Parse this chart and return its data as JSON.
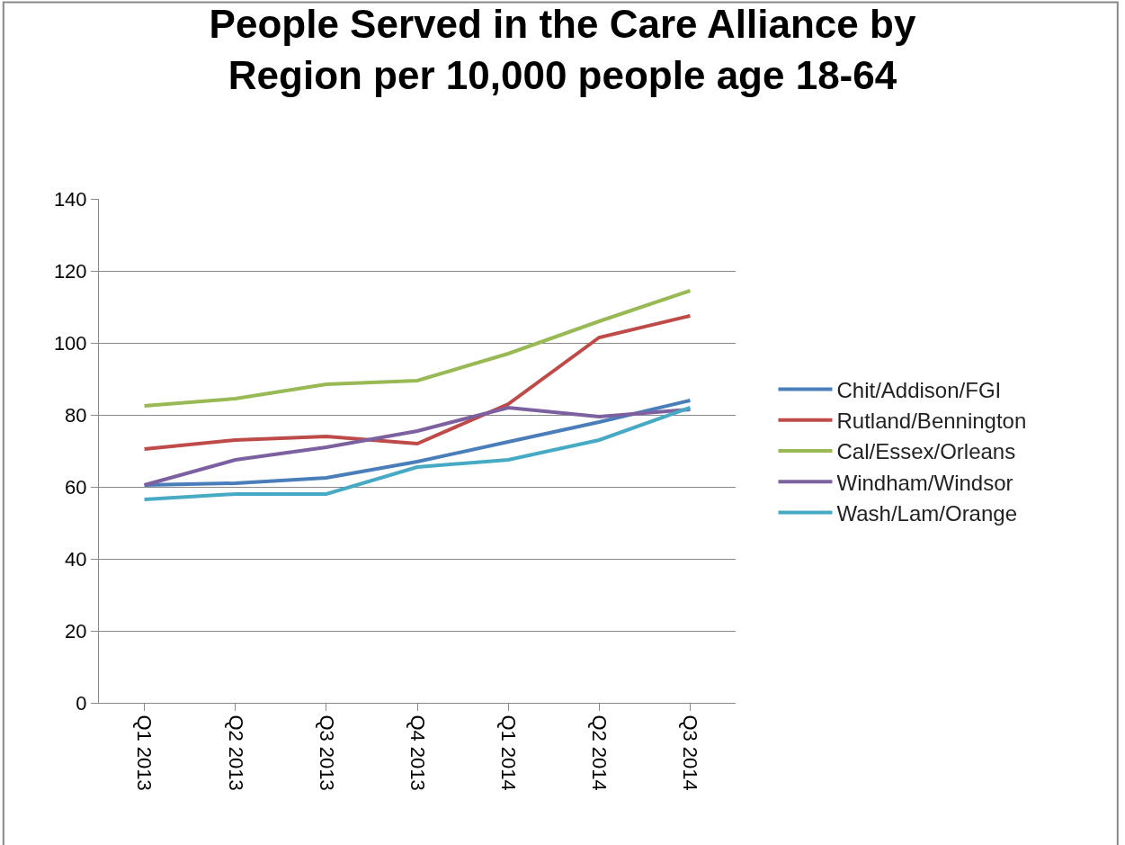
{
  "chart_data": {
    "type": "line",
    "title": "People Served in the Care Alliance by Region per 10,000 people age 18-64",
    "categories": [
      "Q1 2013",
      "Q2 2013",
      "Q3 2013",
      "Q4 2013",
      "Q1 2014",
      "Q2 2014",
      "Q3 2014"
    ],
    "series": [
      {
        "name": "Chit/Addison/FGI",
        "color": "#4a7ebb",
        "values": [
          60.5,
          61,
          62.5,
          67,
          72.5,
          78,
          84
        ]
      },
      {
        "name": "Rutland/Bennington",
        "color": "#be4b48",
        "values": [
          70.5,
          73,
          74,
          72,
          83,
          101.5,
          107.5
        ]
      },
      {
        "name": "Cal/Essex/Orleans",
        "color": "#98b954",
        "values": [
          82.5,
          84.5,
          88.5,
          89.5,
          97,
          106,
          114.5
        ]
      },
      {
        "name": "Windham/Windsor",
        "color": "#7d60a0",
        "values": [
          60.5,
          67.5,
          71,
          75.5,
          82,
          79.5,
          81.5
        ]
      },
      {
        "name": "Wash/Lam/Orange",
        "color": "#46aac5",
        "values": [
          56.5,
          58,
          58,
          65.5,
          67.5,
          73,
          82
        ]
      }
    ],
    "ylim": [
      0,
      140
    ],
    "yticks": [
      0,
      20,
      40,
      60,
      80,
      100,
      120,
      140
    ],
    "grid": "y",
    "legend": "right",
    "marker": "none",
    "line_style": "solid"
  }
}
